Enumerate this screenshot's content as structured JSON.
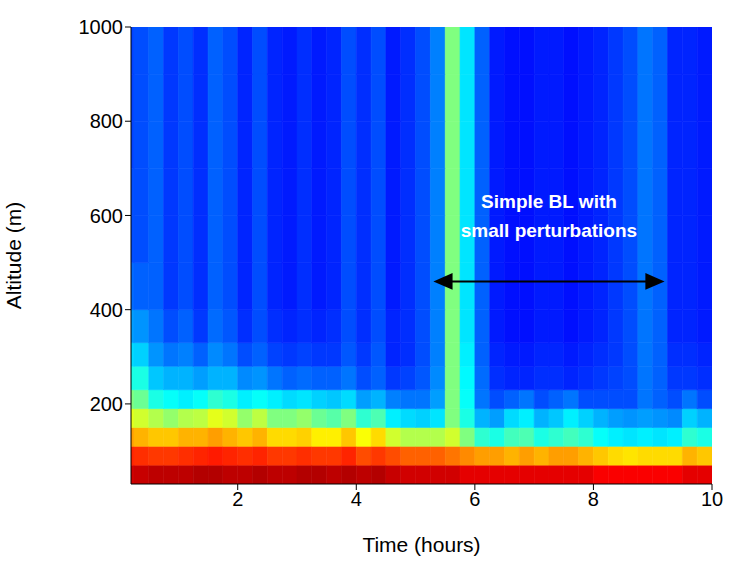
{
  "chart_data": {
    "type": "heatmap",
    "xlabel": "Time (hours)",
    "ylabel": "Altitude (m)",
    "xlim": [
      0.2,
      10
    ],
    "ylim": [
      30,
      1000
    ],
    "xticks": [
      2,
      4,
      6,
      8,
      10
    ],
    "yticks": [
      200,
      400,
      600,
      800,
      1000
    ],
    "clim": [
      0,
      1
    ],
    "x_edges": [
      0,
      0.25,
      0.5,
      0.75,
      1,
      1.25,
      1.5,
      1.75,
      2,
      2.25,
      2.5,
      2.75,
      3,
      3.25,
      3.5,
      3.75,
      4,
      4.25,
      4.5,
      4.75,
      5,
      5.25,
      5.5,
      5.75,
      6,
      6.25,
      6.5,
      6.75,
      7,
      7.25,
      7.5,
      7.75,
      8,
      8.25,
      8.5,
      8.75,
      9,
      9.25,
      9.5,
      9.75,
      10
    ],
    "y_edges": [
      30,
      70,
      110,
      150,
      190,
      230,
      280,
      330,
      400,
      500,
      600,
      700,
      800,
      900,
      1000
    ],
    "cells": [
      [
        0.92,
        0.93,
        0.94,
        0.94,
        0.94,
        0.95,
        0.95,
        0.94,
        0.94,
        0.95,
        0.94,
        0.94,
        0.95,
        0.95,
        0.94,
        0.95,
        0.94,
        0.95,
        0.93,
        0.92,
        0.92,
        0.92,
        0.92,
        0.9,
        0.9,
        0.9,
        0.9,
        0.9,
        0.9,
        0.9,
        0.9,
        0.9,
        0.88,
        0.88,
        0.88,
        0.88,
        0.88,
        0.88,
        0.9,
        0.9
      ],
      [
        0.84,
        0.83,
        0.82,
        0.82,
        0.83,
        0.84,
        0.85,
        0.84,
        0.83,
        0.84,
        0.82,
        0.82,
        0.83,
        0.82,
        0.82,
        0.84,
        0.8,
        0.82,
        0.8,
        0.78,
        0.78,
        0.78,
        0.76,
        0.74,
        0.72,
        0.72,
        0.7,
        0.72,
        0.7,
        0.72,
        0.72,
        0.7,
        0.68,
        0.66,
        0.65,
        0.66,
        0.66,
        0.66,
        0.7,
        0.68
      ],
      [
        0.72,
        0.7,
        0.68,
        0.68,
        0.7,
        0.7,
        0.72,
        0.7,
        0.68,
        0.7,
        0.66,
        0.66,
        0.67,
        0.64,
        0.64,
        0.68,
        0.62,
        0.66,
        0.58,
        0.55,
        0.55,
        0.55,
        0.58,
        0.5,
        0.42,
        0.4,
        0.44,
        0.45,
        0.4,
        0.42,
        0.44,
        0.42,
        0.38,
        0.36,
        0.35,
        0.36,
        0.35,
        0.36,
        0.42,
        0.4
      ],
      [
        0.6,
        0.58,
        0.55,
        0.52,
        0.55,
        0.56,
        0.6,
        0.58,
        0.52,
        0.56,
        0.5,
        0.5,
        0.52,
        0.48,
        0.46,
        0.5,
        0.42,
        0.45,
        0.36,
        0.34,
        0.33,
        0.35,
        0.5,
        0.4,
        0.3,
        0.28,
        0.34,
        0.36,
        0.3,
        0.32,
        0.36,
        0.33,
        0.3,
        0.28,
        0.27,
        0.28,
        0.27,
        0.26,
        0.33,
        0.3
      ],
      [
        0.5,
        0.48,
        0.4,
        0.38,
        0.36,
        0.38,
        0.42,
        0.4,
        0.36,
        0.38,
        0.36,
        0.34,
        0.35,
        0.33,
        0.32,
        0.34,
        0.28,
        0.3,
        0.25,
        0.24,
        0.24,
        0.28,
        0.5,
        0.38,
        0.24,
        0.2,
        0.22,
        0.24,
        0.2,
        0.22,
        0.24,
        0.2,
        0.2,
        0.2,
        0.2,
        0.24,
        0.22,
        0.2,
        0.24,
        0.2
      ],
      [
        0.4,
        0.4,
        0.32,
        0.3,
        0.3,
        0.28,
        0.3,
        0.3,
        0.26,
        0.27,
        0.24,
        0.22,
        0.23,
        0.22,
        0.22,
        0.24,
        0.2,
        0.22,
        0.18,
        0.19,
        0.21,
        0.26,
        0.5,
        0.37,
        0.23,
        0.17,
        0.16,
        0.16,
        0.17,
        0.17,
        0.16,
        0.17,
        0.18,
        0.19,
        0.2,
        0.24,
        0.22,
        0.18,
        0.18,
        0.17
      ],
      [
        0.34,
        0.33,
        0.27,
        0.24,
        0.25,
        0.22,
        0.26,
        0.24,
        0.2,
        0.22,
        0.19,
        0.18,
        0.19,
        0.18,
        0.18,
        0.21,
        0.18,
        0.21,
        0.16,
        0.17,
        0.2,
        0.25,
        0.5,
        0.36,
        0.22,
        0.16,
        0.15,
        0.15,
        0.16,
        0.16,
        0.15,
        0.16,
        0.17,
        0.18,
        0.2,
        0.24,
        0.22,
        0.17,
        0.17,
        0.16
      ],
      [
        0.28,
        0.27,
        0.24,
        0.2,
        0.22,
        0.18,
        0.23,
        0.21,
        0.17,
        0.2,
        0.17,
        0.16,
        0.17,
        0.16,
        0.17,
        0.2,
        0.17,
        0.2,
        0.16,
        0.17,
        0.2,
        0.25,
        0.5,
        0.35,
        0.22,
        0.15,
        0.14,
        0.14,
        0.15,
        0.15,
        0.14,
        0.15,
        0.16,
        0.18,
        0.2,
        0.24,
        0.22,
        0.16,
        0.16,
        0.15
      ],
      [
        0.23,
        0.22,
        0.22,
        0.18,
        0.2,
        0.17,
        0.22,
        0.2,
        0.16,
        0.2,
        0.16,
        0.15,
        0.17,
        0.15,
        0.16,
        0.2,
        0.17,
        0.2,
        0.15,
        0.17,
        0.2,
        0.25,
        0.5,
        0.35,
        0.22,
        0.15,
        0.14,
        0.14,
        0.15,
        0.15,
        0.14,
        0.15,
        0.16,
        0.18,
        0.2,
        0.24,
        0.22,
        0.16,
        0.16,
        0.15
      ],
      [
        0.2,
        0.2,
        0.22,
        0.18,
        0.2,
        0.17,
        0.22,
        0.2,
        0.16,
        0.2,
        0.16,
        0.15,
        0.17,
        0.15,
        0.16,
        0.2,
        0.17,
        0.2,
        0.15,
        0.17,
        0.2,
        0.25,
        0.5,
        0.35,
        0.22,
        0.15,
        0.14,
        0.14,
        0.15,
        0.15,
        0.14,
        0.15,
        0.16,
        0.18,
        0.2,
        0.24,
        0.22,
        0.16,
        0.16,
        0.15
      ],
      [
        0.2,
        0.2,
        0.22,
        0.18,
        0.2,
        0.17,
        0.22,
        0.2,
        0.16,
        0.2,
        0.16,
        0.15,
        0.17,
        0.15,
        0.16,
        0.2,
        0.17,
        0.2,
        0.15,
        0.17,
        0.2,
        0.25,
        0.5,
        0.35,
        0.22,
        0.15,
        0.14,
        0.14,
        0.15,
        0.15,
        0.14,
        0.15,
        0.16,
        0.18,
        0.2,
        0.24,
        0.22,
        0.16,
        0.16,
        0.15
      ],
      [
        0.19,
        0.2,
        0.22,
        0.18,
        0.2,
        0.17,
        0.22,
        0.2,
        0.16,
        0.2,
        0.16,
        0.15,
        0.17,
        0.15,
        0.16,
        0.2,
        0.17,
        0.2,
        0.15,
        0.17,
        0.2,
        0.25,
        0.5,
        0.35,
        0.22,
        0.15,
        0.14,
        0.14,
        0.15,
        0.15,
        0.14,
        0.15,
        0.16,
        0.18,
        0.2,
        0.24,
        0.22,
        0.16,
        0.16,
        0.15
      ],
      [
        0.19,
        0.2,
        0.22,
        0.18,
        0.2,
        0.17,
        0.22,
        0.2,
        0.16,
        0.2,
        0.16,
        0.15,
        0.17,
        0.15,
        0.16,
        0.2,
        0.17,
        0.2,
        0.15,
        0.17,
        0.2,
        0.25,
        0.5,
        0.35,
        0.22,
        0.15,
        0.14,
        0.14,
        0.15,
        0.15,
        0.14,
        0.15,
        0.16,
        0.18,
        0.2,
        0.24,
        0.22,
        0.16,
        0.16,
        0.15
      ],
      [
        0.19,
        0.2,
        0.22,
        0.18,
        0.2,
        0.17,
        0.22,
        0.2,
        0.16,
        0.2,
        0.16,
        0.15,
        0.17,
        0.15,
        0.16,
        0.2,
        0.17,
        0.2,
        0.15,
        0.17,
        0.2,
        0.25,
        0.5,
        0.35,
        0.22,
        0.15,
        0.14,
        0.14,
        0.15,
        0.15,
        0.14,
        0.15,
        0.16,
        0.18,
        0.2,
        0.24,
        0.22,
        0.16,
        0.16,
        0.15
      ]
    ],
    "annotation": {
      "text": "Simple BL with small perturbations",
      "x_start": 5.3,
      "x_end": 9.2,
      "y": 460
    }
  }
}
